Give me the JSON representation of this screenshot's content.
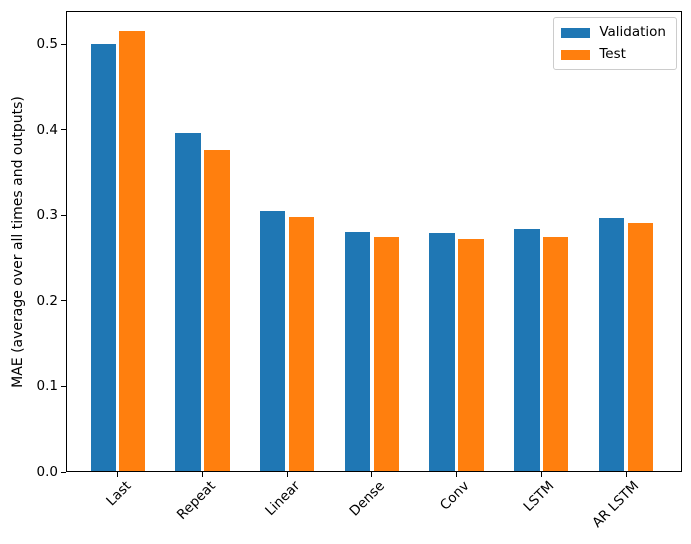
{
  "chart_data": {
    "type": "bar",
    "title": "",
    "xlabel": "",
    "ylabel": "MAE (average over all times and outputs)",
    "categories": [
      "Last",
      "Repeat",
      "Linear",
      "Dense",
      "Conv",
      "LSTM",
      "AR LSTM"
    ],
    "series": [
      {
        "name": "Validation",
        "color": "#1f77b4",
        "values": [
          0.501,
          0.396,
          0.305,
          0.281,
          0.28,
          0.284,
          0.297
        ]
      },
      {
        "name": "Test",
        "color": "#ff7f0e",
        "values": [
          0.516,
          0.377,
          0.298,
          0.275,
          0.272,
          0.275,
          0.291
        ]
      }
    ],
    "ytick_labels": [
      "0.0",
      "0.1",
      "0.2",
      "0.3",
      "0.4",
      "0.5"
    ],
    "ytick_values": [
      0.0,
      0.1,
      0.2,
      0.3,
      0.4,
      0.5
    ],
    "ylim": [
      0,
      0.539
    ],
    "xlim": [
      -0.61,
      6.66
    ],
    "grid": false,
    "bar_width_units": 0.3,
    "bar_group_offset_units": 0.17,
    "x_tick_rotation_deg": 45,
    "legend": {
      "position": "upper-right",
      "entries": [
        {
          "label": "Validation",
          "color": "#1f77b4"
        },
        {
          "label": "Test",
          "color": "#ff7f0e"
        }
      ]
    },
    "axis_color": "#000000",
    "background_color": "#ffffff"
  }
}
